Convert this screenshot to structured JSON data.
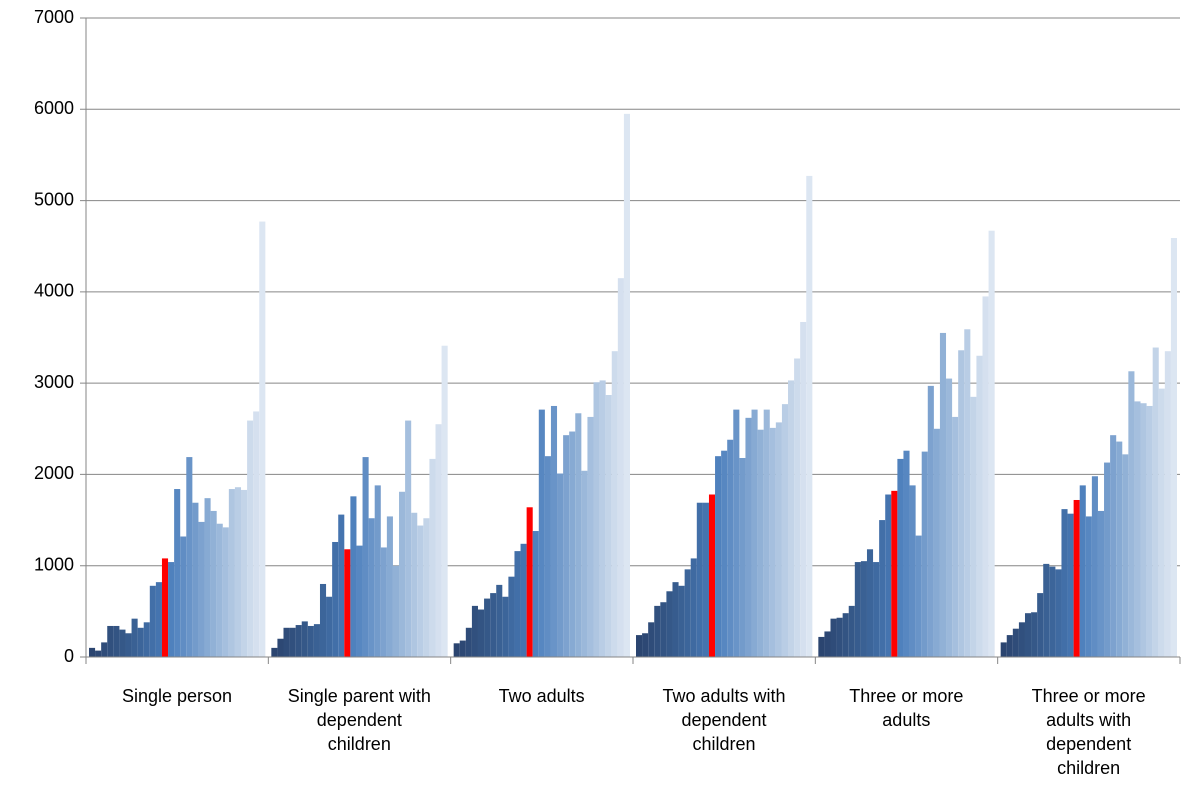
{
  "chart_data": {
    "type": "grouped_bar",
    "categories": [
      "Single person",
      "Single parent with\ndependent\nchildren",
      "Two adults",
      "Two adults with\ndependent\nchildren",
      "Three or more\nadults",
      "Three or more\nadults with\ndependent\nchildren"
    ],
    "ylim": [
      0,
      7000
    ],
    "yticks": [
      0,
      1000,
      2000,
      3000,
      4000,
      5000,
      6000,
      7000
    ],
    "grid": true,
    "series": [
      {
        "color": "#2b4570",
        "values": [
          100,
          100,
          150,
          240,
          220,
          160
        ]
      },
      {
        "color": "#2d4874",
        "values": [
          70,
          200,
          180,
          260,
          280,
          240
        ]
      },
      {
        "color": "#2f4c79",
        "values": [
          160,
          320,
          320,
          380,
          420,
          310
        ]
      },
      {
        "color": "#31507e",
        "values": [
          340,
          320,
          560,
          560,
          430,
          380
        ]
      },
      {
        "color": "#335483",
        "values": [
          340,
          350,
          520,
          600,
          480,
          480
        ]
      },
      {
        "color": "#355888",
        "values": [
          300,
          390,
          640,
          720,
          560,
          490
        ]
      },
      {
        "color": "#375c8e",
        "values": [
          260,
          340,
          700,
          820,
          1040,
          700
        ]
      },
      {
        "color": "#3a6194",
        "values": [
          420,
          360,
          790,
          780,
          1050,
          1020
        ]
      },
      {
        "color": "#3c659a",
        "values": [
          320,
          800,
          660,
          960,
          1180,
          990
        ]
      },
      {
        "color": "#3f6aa1",
        "values": [
          380,
          660,
          880,
          1080,
          1040,
          960
        ]
      },
      {
        "color": "#426fa8",
        "values": [
          780,
          1260,
          1160,
          1690,
          1500,
          1620
        ]
      },
      {
        "color": "#4574af",
        "values": [
          820,
          1560,
          1240,
          1690,
          1780,
          1570
        ]
      },
      {
        "color": "#ff0000",
        "values": [
          1080,
          1180,
          1640,
          1780,
          1820,
          1720
        ]
      },
      {
        "color": "#4f81bd",
        "values": [
          1040,
          1760,
          1380,
          2200,
          2170,
          1880
        ]
      },
      {
        "color": "#5787c1",
        "values": [
          1840,
          1220,
          2710,
          2260,
          2260,
          1540
        ]
      },
      {
        "color": "#608dc4",
        "values": [
          1320,
          2190,
          2200,
          2380,
          1880,
          1980
        ]
      },
      {
        "color": "#6994c8",
        "values": [
          2190,
          1520,
          2750,
          2710,
          1330,
          1600
        ]
      },
      {
        "color": "#739bcb",
        "values": [
          1690,
          1880,
          2010,
          2180,
          2250,
          2130
        ]
      },
      {
        "color": "#7da2cf",
        "values": [
          1480,
          1200,
          2430,
          2620,
          2970,
          2430
        ]
      },
      {
        "color": "#87aad3",
        "values": [
          1740,
          1540,
          2470,
          2710,
          2500,
          2360
        ]
      },
      {
        "color": "#91b1d6",
        "values": [
          1600,
          1000,
          2670,
          2490,
          3550,
          2220
        ]
      },
      {
        "color": "#9bb8da",
        "values": [
          1460,
          1810,
          2040,
          2710,
          3050,
          3130
        ]
      },
      {
        "color": "#a5bfde",
        "values": [
          1420,
          2590,
          2630,
          2510,
          2630,
          2800
        ]
      },
      {
        "color": "#afc6e1",
        "values": [
          1840,
          1580,
          3010,
          2570,
          3360,
          2780
        ]
      },
      {
        "color": "#b9cde5",
        "values": [
          1860,
          1440,
          3030,
          2770,
          3590,
          2750
        ]
      },
      {
        "color": "#c3d4e8",
        "values": [
          1830,
          1520,
          2870,
          3030,
          2850,
          3390
        ]
      },
      {
        "color": "#cddbec",
        "values": [
          2590,
          2170,
          3350,
          3270,
          3300,
          2940
        ]
      },
      {
        "color": "#d5e0ef",
        "values": [
          2690,
          2550,
          4150,
          3670,
          3950,
          3350
        ]
      },
      {
        "color": "#dce6f2",
        "values": [
          4770,
          3410,
          5950,
          5270,
          4670,
          4590
        ]
      }
    ]
  }
}
